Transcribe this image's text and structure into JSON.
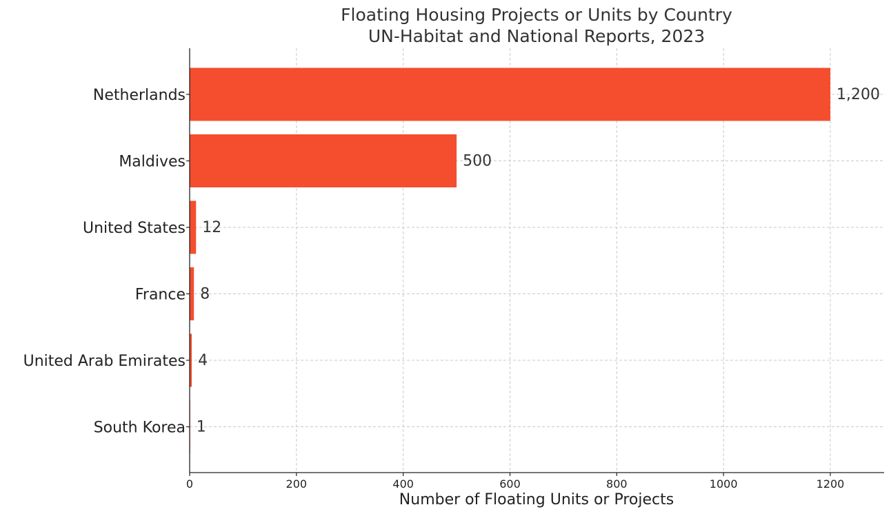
{
  "chart_data": {
    "type": "bar",
    "orientation": "horizontal",
    "title": "Floating Housing Projects or Units by Country",
    "subtitle": "UN-Habitat and National Reports, 2023",
    "xlabel": "Number of Floating Units or Projects",
    "ylabel": "",
    "categories": [
      "Netherlands",
      "Maldives",
      "United States",
      "France",
      "United Arab Emirates",
      "South Korea"
    ],
    "values": [
      1200,
      500,
      12,
      8,
      4,
      1
    ],
    "value_labels": [
      "1,200",
      "500",
      "12",
      "8",
      "4",
      "1"
    ],
    "xlim": [
      0,
      1300
    ],
    "x_ticks": [
      0,
      200,
      400,
      600,
      800,
      1000,
      1200
    ],
    "x_tick_labels": [
      "0",
      "200",
      "400",
      "600",
      "800",
      "1000",
      "1200"
    ],
    "grid": true,
    "legend": "none",
    "bar_color": "#f44e2e"
  }
}
